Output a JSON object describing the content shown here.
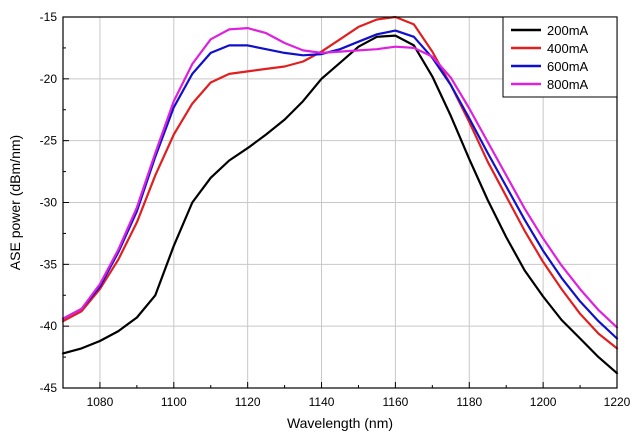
{
  "chart_data": {
    "type": "line",
    "title": "",
    "xlabel": "Wavelength (nm)",
    "ylabel": "ASE power (dBm/nm)",
    "xlim": [
      1070,
      1220
    ],
    "ylim": [
      -45,
      -15
    ],
    "x_ticks": [
      1080,
      1100,
      1120,
      1140,
      1160,
      1180,
      1200,
      1220
    ],
    "y_ticks": [
      -45,
      -40,
      -35,
      -30,
      -25,
      -20,
      -15
    ],
    "x_tick_labels": [
      "1080",
      "1100",
      "1120",
      "1140",
      "1160",
      "1180",
      "1200",
      "1220"
    ],
    "y_tick_labels": [
      "-45",
      "-40",
      "-35",
      "-30",
      "-25",
      "-20",
      "-15"
    ],
    "grid": true,
    "legend_position": "top-right",
    "series": [
      {
        "name": "200mA",
        "color": "#000000",
        "x": [
          1070,
          1075,
          1080,
          1085,
          1090,
          1095,
          1100,
          1105,
          1110,
          1115,
          1120,
          1125,
          1130,
          1135,
          1140,
          1145,
          1150,
          1155,
          1160,
          1165,
          1170,
          1175,
          1180,
          1185,
          1190,
          1195,
          1200,
          1205,
          1210,
          1215,
          1220
        ],
        "y": [
          -42.2,
          -41.8,
          -41.2,
          -40.4,
          -39.3,
          -37.5,
          -33.5,
          -30.0,
          -28.0,
          -26.6,
          -25.6,
          -24.5,
          -23.3,
          -21.8,
          -20.0,
          -18.7,
          -17.4,
          -16.6,
          -16.5,
          -17.3,
          -19.8,
          -23.0,
          -26.5,
          -29.8,
          -32.8,
          -35.5,
          -37.6,
          -39.5,
          -41.0,
          -42.5,
          -43.8
        ]
      },
      {
        "name": "400mA",
        "color": "#e02020",
        "x": [
          1070,
          1075,
          1080,
          1085,
          1090,
          1095,
          1100,
          1105,
          1110,
          1115,
          1120,
          1125,
          1130,
          1135,
          1140,
          1145,
          1150,
          1155,
          1160,
          1165,
          1170,
          1175,
          1180,
          1185,
          1190,
          1195,
          1200,
          1205,
          1210,
          1215,
          1220
        ],
        "y": [
          -39.6,
          -38.8,
          -37.0,
          -34.6,
          -31.6,
          -27.8,
          -24.5,
          -22.0,
          -20.3,
          -19.6,
          -19.4,
          -19.2,
          -19.0,
          -18.6,
          -17.8,
          -16.8,
          -15.8,
          -15.2,
          -15.0,
          -15.6,
          -17.8,
          -20.5,
          -23.5,
          -26.7,
          -29.5,
          -32.3,
          -34.8,
          -37.0,
          -39.0,
          -40.6,
          -41.8
        ]
      },
      {
        "name": "600mA",
        "color": "#1010cc",
        "x": [
          1070,
          1075,
          1080,
          1085,
          1090,
          1095,
          1100,
          1105,
          1110,
          1115,
          1120,
          1125,
          1130,
          1135,
          1140,
          1145,
          1150,
          1155,
          1160,
          1165,
          1170,
          1175,
          1180,
          1185,
          1190,
          1195,
          1200,
          1205,
          1210,
          1215,
          1220
        ],
        "y": [
          -39.4,
          -38.6,
          -36.8,
          -34.0,
          -30.7,
          -26.3,
          -22.3,
          -19.6,
          -17.9,
          -17.3,
          -17.3,
          -17.6,
          -17.9,
          -18.1,
          -18.0,
          -17.6,
          -17.0,
          -16.4,
          -16.1,
          -16.6,
          -18.3,
          -20.5,
          -23.2,
          -26.0,
          -28.7,
          -31.4,
          -33.9,
          -36.1,
          -38.0,
          -39.6,
          -41.0
        ]
      },
      {
        "name": "800mA",
        "color": "#dd22dd",
        "x": [
          1070,
          1075,
          1080,
          1085,
          1090,
          1095,
          1100,
          1105,
          1110,
          1115,
          1120,
          1125,
          1130,
          1135,
          1140,
          1145,
          1150,
          1155,
          1160,
          1165,
          1170,
          1175,
          1180,
          1185,
          1190,
          1195,
          1200,
          1205,
          1210,
          1215,
          1220
        ],
        "y": [
          -39.4,
          -38.6,
          -36.6,
          -33.8,
          -30.4,
          -26.0,
          -21.8,
          -18.8,
          -16.8,
          -16.0,
          -15.9,
          -16.3,
          -17.1,
          -17.7,
          -17.9,
          -17.8,
          -17.7,
          -17.6,
          -17.4,
          -17.5,
          -18.2,
          -19.9,
          -22.4,
          -25.1,
          -27.8,
          -30.5,
          -32.9,
          -35.1,
          -37.0,
          -38.7,
          -40.1
        ]
      }
    ]
  }
}
